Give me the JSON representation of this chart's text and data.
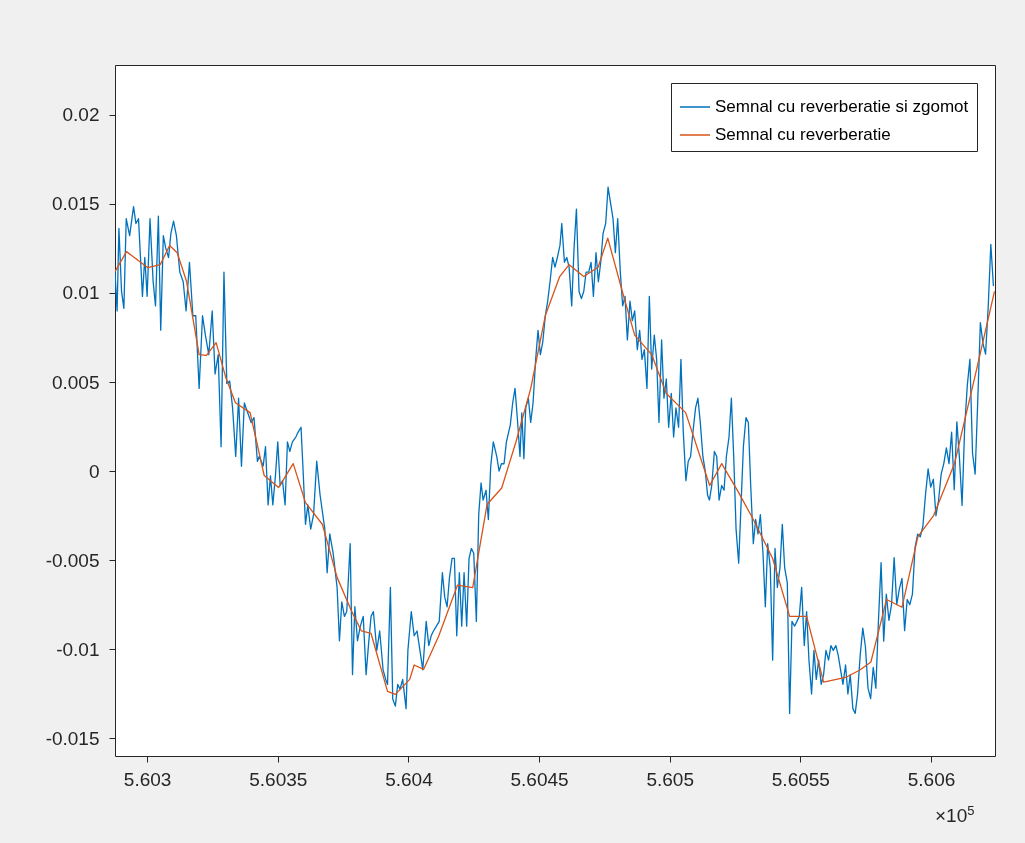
{
  "chart_data": {
    "type": "line",
    "xlim": [
      5.602877,
      5.606245
    ],
    "ylim": [
      -0.016,
      0.0228
    ],
    "xticks": [
      5.603,
      5.6035,
      5.604,
      5.6045,
      5.605,
      5.6055,
      5.606
    ],
    "yticks": [
      -0.015,
      -0.01,
      -0.005,
      0,
      0.005,
      0.01,
      0.015,
      0.02
    ],
    "legend": "top right",
    "annotations": [
      "×10$^{5}$"
    ],
    "series": [
      {
        "name": "Semnal cu reverberatie si zgomot",
        "color": "#0072bd",
        "x": [
          5.602877,
          5.602885,
          5.602892,
          5.602902,
          5.602911,
          5.60292,
          5.602933,
          5.602948,
          5.602957,
          5.602967,
          5.602982,
          5.602991,
          5.603,
          5.603011,
          5.603023,
          5.603032,
          5.603043,
          5.603052,
          5.603062,
          5.603071,
          5.603082,
          5.603091,
          5.603101,
          5.603112,
          5.603125,
          5.603138,
          5.603149,
          5.603162,
          5.603175,
          5.603186,
          5.603199,
          5.603212,
          5.603223,
          5.603236,
          5.603249,
          5.60326,
          5.603272,
          5.603283,
          5.603294,
          5.603305,
          5.603316,
          5.603327,
          5.603339,
          5.60335,
          5.603361,
          5.603372,
          5.603385,
          5.603398,
          5.603409,
          5.603422,
          5.603429,
          5.603444,
          5.603453,
          5.603463,
          5.603472,
          5.603481,
          5.603491,
          5.6035,
          5.603509,
          5.603518,
          5.603528,
          5.603537,
          5.603546,
          5.603556,
          5.603569,
          5.603578,
          5.603589,
          5.603597,
          5.603606,
          5.603615,
          5.603626,
          5.603637,
          5.603649,
          5.603662,
          5.60368,
          5.603689,
          5.603699,
          5.603712,
          5.603727,
          5.603736,
          5.603745,
          5.603755,
          5.603764,
          5.603777,
          5.603786,
          5.603795,
          5.603805,
          5.603816,
          5.603827,
          5.603838,
          5.603847,
          5.603857,
          5.603866,
          5.603879,
          5.60389,
          5.603903,
          5.603913,
          5.60392,
          5.603931,
          5.60394,
          5.60395,
          5.603959,
          5.603968,
          5.603978,
          5.603991,
          5.603998,
          5.604011,
          5.604022,
          5.604033,
          5.604044,
          5.604055,
          5.604068,
          5.604078,
          5.604087,
          5.604096,
          5.604107,
          5.604118,
          5.60413,
          5.604139,
          5.604148,
          5.604157,
          5.604167,
          5.604176,
          5.604185,
          5.604195,
          5.604204,
          5.604213,
          5.604223,
          5.604232,
          5.604241,
          5.60425,
          5.60426,
          5.604269,
          5.604278,
          5.604286,
          5.604297,
          5.604306,
          5.604315,
          5.604325,
          5.604338,
          5.604347,
          5.604356,
          5.604366,
          5.604375,
          5.60439,
          5.604399,
          5.604408,
          5.604418,
          5.604427,
          5.604434,
          5.604442,
          5.604449,
          5.604459,
          5.604468,
          5.604477,
          5.604487,
          5.604496,
          5.604505,
          5.604514,
          5.604524,
          5.604533,
          5.604542,
          5.604552,
          5.604561,
          5.60457,
          5.60458,
          5.604587,
          5.604597,
          5.604606,
          5.604615,
          5.604625,
          5.604634,
          5.604643,
          5.604653,
          5.604662,
          5.604671,
          5.60468,
          5.60469,
          5.604699,
          5.604708,
          5.604718,
          5.604727,
          5.604736,
          5.604745,
          5.604755,
          5.604764,
          5.604773,
          5.604783,
          5.604792,
          5.604801,
          5.604811,
          5.60482,
          5.604829,
          5.604838,
          5.604848,
          5.604857,
          5.604866,
          5.604876,
          5.604885,
          5.604894,
          5.604903,
          5.604913,
          5.604922,
          5.604931,
          5.604941,
          5.60495,
          5.604959,
          5.604969,
          5.604978,
          5.604987,
          5.604996,
          5.605006,
          5.605015,
          5.605024,
          5.605034,
          5.605043,
          5.605052,
          5.605062,
          5.605071,
          5.60508,
          5.605089,
          5.605099,
          5.605108,
          5.605117,
          5.605127,
          5.605136,
          5.605145,
          5.605152,
          5.605161,
          5.605171,
          5.60518,
          5.605189,
          5.605199,
          5.605208,
          5.605217,
          5.605227,
          5.605236,
          5.605245,
          5.605254,
          5.605264,
          5.605273,
          5.605282,
          5.605292,
          5.605301,
          5.60531,
          5.60532,
          5.605329,
          5.605338,
          5.605347,
          5.605357,
          5.605366,
          5.605375,
          5.605385,
          5.605394,
          5.605403,
          5.605412,
          5.605422,
          5.605431,
          5.60544,
          5.60545,
          5.605459,
          5.605468,
          5.605478,
          5.605487,
          5.605496,
          5.605505,
          5.605515,
          5.605524,
          5.605533,
          5.605543,
          5.605552,
          5.605561,
          5.60557,
          5.60558,
          5.605589,
          5.605598,
          5.605608,
          5.605617,
          5.605626,
          5.605636,
          5.605645,
          5.605654,
          5.605663,
          5.605673,
          5.605682,
          5.605691,
          5.605701,
          5.60571,
          5.605719,
          5.605729,
          5.605739,
          5.605749,
          5.605759,
          5.605769,
          5.605779,
          5.605789,
          5.605799,
          5.605809,
          5.605819,
          5.605829,
          5.605839,
          5.605849,
          5.605859,
          5.605869,
          5.605879,
          5.605889,
          5.605899,
          5.605909,
          5.605919,
          5.605929,
          5.605939,
          5.605949,
          5.605959,
          5.605969,
          5.605979,
          5.605989,
          5.605999,
          5.606009,
          5.606019,
          5.606029,
          5.606039,
          5.606049,
          5.606059,
          5.606069,
          5.606079,
          5.606089,
          5.606099,
          5.606109,
          5.606119,
          5.606129,
          5.606139,
          5.606149,
          5.606159,
          5.606169,
          5.606179,
          5.606189,
          5.606199,
          5.606209,
          5.606219,
          5.606229,
          5.606239
        ],
        "values": [
          0.01117,
          0.00899,
          0.01363,
          0.01009,
          0.00913,
          0.01417,
          0.01322,
          0.01485,
          0.0139,
          0.01417,
          0.00981,
          0.01199,
          0.00981,
          0.01417,
          0.01063,
          0.00927,
          0.01431,
          0.00791,
          0.01322,
          0.01253,
          0.01199,
          0.01335,
          0.01403,
          0.01322,
          0.01117,
          0.01063,
          0.00899,
          0.01172,
          0.00872,
          0.00872,
          0.00464,
          0.00872,
          0.00763,
          0.00654,
          0.00899,
          0.00545,
          0.00654,
          0.00137,
          0.01117,
          0.00491,
          0.00505,
          0.00355,
          0.00082,
          0.00409,
          0.00027,
          0.00382,
          0.00327,
          0.00272,
          0.003,
          0.00054,
          0.00082,
          0.00028,
          0.00137,
          -0.0019,
          -0.00027,
          -0.0019,
          -0.00027,
          0.00164,
          -0.00081,
          -0.00054,
          -0.0019,
          0.00164,
          0.0011,
          0.00164,
          0.00191,
          0.00219,
          0.00246,
          0,
          -0.00299,
          -0.0019,
          -0.00326,
          -0.00245,
          0.00055,
          -0.00136,
          -0.00326,
          -0.00571,
          -0.00353,
          -0.00462,
          -0.00653,
          -0.00953,
          -0.00735,
          -0.00816,
          -0.00789,
          -0.00408,
          -0.01143,
          -0.00762,
          -0.00953,
          -0.00871,
          -0.00816,
          -0.01143,
          -0.0098,
          -0.00816,
          -0.00789,
          -0.01007,
          -0.00898,
          -0.01116,
          -0.0117,
          -0.01198,
          -0.00653,
          -0.0128,
          -0.0132,
          -0.01198,
          -0.01225,
          -0.0117,
          -0.01334,
          -0.01007,
          -0.00789,
          -0.00925,
          -0.00898,
          -0.01007,
          -0.01116,
          -0.00844,
          -0.0098,
          -0.00925,
          -0.00898,
          -0.00871,
          -0.00844,
          -0.00571,
          -0.00708,
          -0.00762,
          -0.00599,
          -0.0049,
          -0.0049,
          -0.00925,
          -0.00571,
          -0.00871,
          -0.00571,
          -0.00871,
          -0.0049,
          -0.00435,
          -0.00462,
          -0.00844,
          -0.00245,
          -0.00067,
          -0.00163,
          -0.00108,
          -0.00272,
          0.00028,
          0.00164,
          0.00082,
          0,
          0.00041,
          0.00041,
          0.00164,
          0.00259,
          0.00382,
          0.00464,
          0.00273,
          0.00082,
          0.00327,
          0.00069,
          0.00355,
          0.00409,
          0.00273,
          0.00382,
          0.00627,
          0.0079,
          0.00654,
          0.00722,
          0.00872,
          0.00954,
          0.01063,
          0.01199,
          0.01145,
          0.01199,
          0.01267,
          0.0139,
          0.01172,
          0.01199,
          0.01145,
          0.00927,
          0.01254,
          0.01471,
          0.01008,
          0.00968,
          0.01008,
          0.01117,
          0.01117,
          0.01172,
          0.00981,
          0.01226,
          0.01063,
          0.01172,
          0.01335,
          0.0139,
          0.01594,
          0.01512,
          0.01417,
          0.01226,
          0.01417,
          0.01117,
          0.00927,
          0.00981,
          0.00736,
          0.00954,
          0.00845,
          0.00899,
          0.00682,
          0.0079,
          0.00627,
          0.00682,
          0.00464,
          0.00981,
          0.00573,
          0.00763,
          0.00627,
          0.00273,
          0.00736,
          0.00409,
          0.00518,
          0.00246,
          0.00436,
          0.00191,
          0.00355,
          0.00246,
          0.00627,
          0.00219,
          -0.00054,
          0.00055,
          0.00082,
          0.00219,
          0.00355,
          0.00409,
          0.00273,
          0.00082,
          0,
          -0.00136,
          -0.00163,
          -0.00081,
          0.0011,
          0.00082,
          -0.00163,
          -0.00081,
          -0.00108,
          0.00082,
          0.00191,
          0.00409,
          0.00082,
          -0.00326,
          -0.00517,
          -0.0019,
          0.00137,
          0.003,
          0.00273,
          -0.00081,
          -0.00408,
          -0.00272,
          -0.00353,
          -0.00245,
          -0.00462,
          -0.00762,
          -0.00408,
          -0.00544,
          -0.01062,
          -0.00435,
          -0.00653,
          -0.00544,
          -0.00299,
          -0.00544,
          -0.00626,
          -0.01361,
          -0.00844,
          -0.00871,
          -0.00844,
          -0.00816,
          -0.00653,
          -0.0098,
          -0.00789,
          -0.01062,
          -0.01252,
          -0.01007,
          -0.0117,
          -0.01062,
          -0.01198,
          -0.01143,
          -0.01007,
          -0.01062,
          -0.0098,
          -0.01007,
          -0.0098,
          -0.01035,
          -0.01116,
          -0.01198,
          -0.01089,
          -0.01252,
          -0.01143,
          -0.01334,
          -0.01361,
          -0.01252,
          -0.01035,
          -0.00882,
          -0.00985,
          -0.01219,
          -0.01278,
          -0.01102,
          -0.01219,
          -0.00838,
          -0.00515,
          -0.00955,
          -0.00691,
          -0.00838,
          -0.0075,
          -0.00486,
          -0.0075,
          -0.00662,
          -0.00603,
          -0.00896,
          -0.00721,
          -0.0075,
          -0.00691,
          -0.00428,
          -0.00354,
          -0.00369,
          -0.0031,
          -0.00134,
          0.00012,
          -0.0009,
          -0.00046,
          -0.00251,
          -0.00164,
          -0.00017,
          0.00042,
          0.0013,
          0.00042,
          0.00218,
          -0.00105,
          0.00276,
          0.00071,
          -0.00193,
          0.00247,
          0.00481,
          0.00628,
          0.001,
          -0.00017,
          0.00394,
          0.00833,
          0.00716,
          0.00657,
          0.00921,
          0.01273,
          0.01039
        ]
      },
      {
        "name": "Semnal cu reverberatie",
        "color": "#d95319",
        "x": [
          5.602877,
          5.602921,
          5.603003,
          5.60305,
          5.603086,
          5.603115,
          5.603151,
          5.603199,
          5.603227,
          5.603264,
          5.6033,
          5.603338,
          5.603394,
          5.603448,
          5.603503,
          5.603559,
          5.603606,
          5.603671,
          5.603727,
          5.603783,
          5.60382,
          5.603857,
          5.60392,
          5.60395,
          5.604005,
          5.604022,
          5.604058,
          5.604116,
          5.604188,
          5.604246,
          5.604301,
          5.604357,
          5.604412,
          5.604468,
          5.604524,
          5.604579,
          5.604615,
          5.604671,
          5.604726,
          5.604763,
          5.604819,
          5.604866,
          5.604931,
          5.604987,
          5.605061,
          5.605153,
          5.605199,
          5.605264,
          5.60532,
          5.605394,
          5.605459,
          5.605524,
          5.605589,
          5.605673,
          5.605728,
          5.60577,
          5.60583,
          5.605889,
          5.60595,
          5.60601,
          5.60609,
          5.60617,
          5.606243
        ],
        "values": [
          0.0112,
          0.01232,
          0.01142,
          0.01159,
          0.01266,
          0.01226,
          0.01064,
          0.00654,
          0.00649,
          0.00721,
          0.0053,
          0.00384,
          0.00328,
          -0.00025,
          -0.00093,
          0.00042,
          -0.00177,
          -0.003,
          -0.00597,
          -0.00788,
          -0.00898,
          -0.00912,
          -0.01237,
          -0.01254,
          -0.0117,
          -0.01089,
          -0.01114,
          -0.00926,
          -0.0064,
          -0.00654,
          -0.00188,
          -0.00095,
          0.00166,
          0.00463,
          0.00873,
          0.01092,
          0.01159,
          0.01092,
          0.01144,
          0.01308,
          0.01007,
          0.00763,
          0.00654,
          0.00435,
          0.00328,
          -0.00081,
          0.00042,
          -0.00121,
          -0.00272,
          -0.00491,
          -0.00816,
          -0.00816,
          -0.01185,
          -0.01159,
          -0.01117,
          -0.01072,
          -0.00721,
          -0.00765,
          -0.00368,
          -0.0025,
          0.00042,
          0.00542,
          0.01009
        ]
      }
    ]
  }
}
